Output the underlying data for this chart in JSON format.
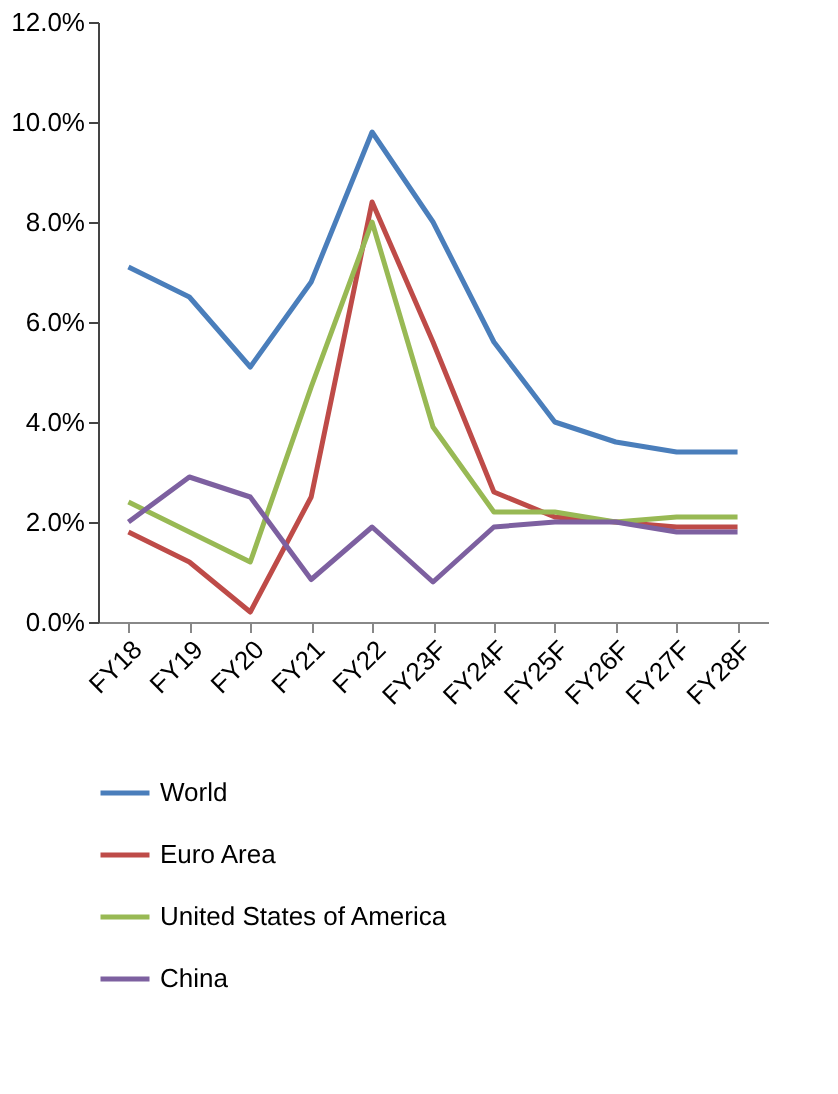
{
  "chart_data": {
    "type": "line",
    "categories": [
      "FY18",
      "FY19",
      "FY20",
      "FY21",
      "FY22",
      "FY23F",
      "FY24F",
      "FY25F",
      "FY26F",
      "FY27F",
      "FY28F"
    ],
    "series": [
      {
        "name": "World",
        "color": "#4a7ebb",
        "values": [
          7.1,
          6.5,
          5.1,
          6.8,
          9.8,
          8.0,
          5.6,
          4.0,
          3.6,
          3.4,
          3.4
        ]
      },
      {
        "name": "Euro Area",
        "color": "#be4b48",
        "values": [
          1.8,
          1.2,
          0.2,
          2.5,
          8.4,
          5.6,
          2.6,
          2.1,
          2.0,
          1.9,
          1.9
        ]
      },
      {
        "name": "United States of America",
        "color": "#98b954",
        "values": [
          2.4,
          1.8,
          1.2,
          4.7,
          8.0,
          3.9,
          2.2,
          2.2,
          2.0,
          2.1,
          2.1
        ]
      },
      {
        "name": "China",
        "color": "#7d60a0",
        "values": [
          2.0,
          2.9,
          2.5,
          0.85,
          1.9,
          0.8,
          1.9,
          2.0,
          2.0,
          1.8,
          1.8
        ]
      }
    ],
    "ylim": [
      0,
      12
    ],
    "yticks": [
      {
        "value": 0,
        "label": "0.0%"
      },
      {
        "value": 2,
        "label": "2.0%"
      },
      {
        "value": 4,
        "label": "4.0%"
      },
      {
        "value": 6,
        "label": "6.0%"
      },
      {
        "value": 8,
        "label": "8.0%"
      },
      {
        "value": 10,
        "label": "10.0%"
      },
      {
        "value": 12,
        "label": "12.0%"
      }
    ],
    "grid": false,
    "legend": "bottom",
    "marker": "none",
    "line_style": "solid"
  }
}
